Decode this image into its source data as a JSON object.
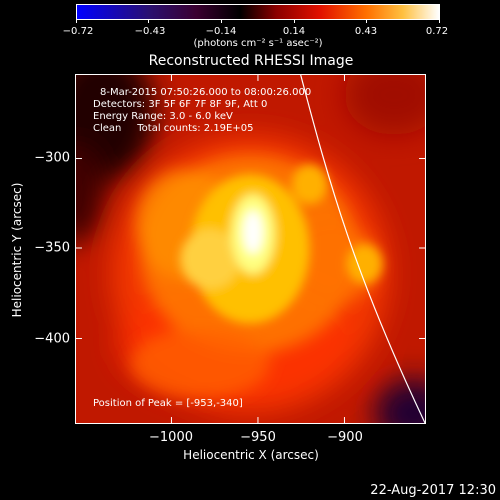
{
  "colorbar": {
    "ticks": [
      "−0.72",
      "−0.43",
      "−0.14",
      "0.14",
      "0.43",
      "0.72"
    ],
    "units": "(photons cm⁻² s⁻¹ asec⁻²)"
  },
  "title": "Reconstructed RHESSI Image",
  "info": {
    "time_range": "8-Mar-2015 07:50:26.000 to 08:00:26.000",
    "detectors": "Detectors: 3F 5F 6F 7F 8F 9F, Att 0",
    "energy": "Energy Range: 3.0 - 6.0 keV",
    "method": "Clean     Total counts: 2.19E+05",
    "peak": "Position of Peak = [-953,-340]"
  },
  "axes": {
    "xlabel": "Heliocentric X (arcsec)",
    "ylabel": "Heliocentric Y (arcsec)",
    "xticks": [
      "−1000",
      "−950",
      "−900"
    ],
    "yticks": [
      "−300",
      "−350",
      "−400"
    ]
  },
  "colors": {
    "peak": "#ffffff",
    "background": "#000000",
    "limb": "#ffffff"
  },
  "footer": {
    "date": "22-Aug-2017 12:30"
  }
}
